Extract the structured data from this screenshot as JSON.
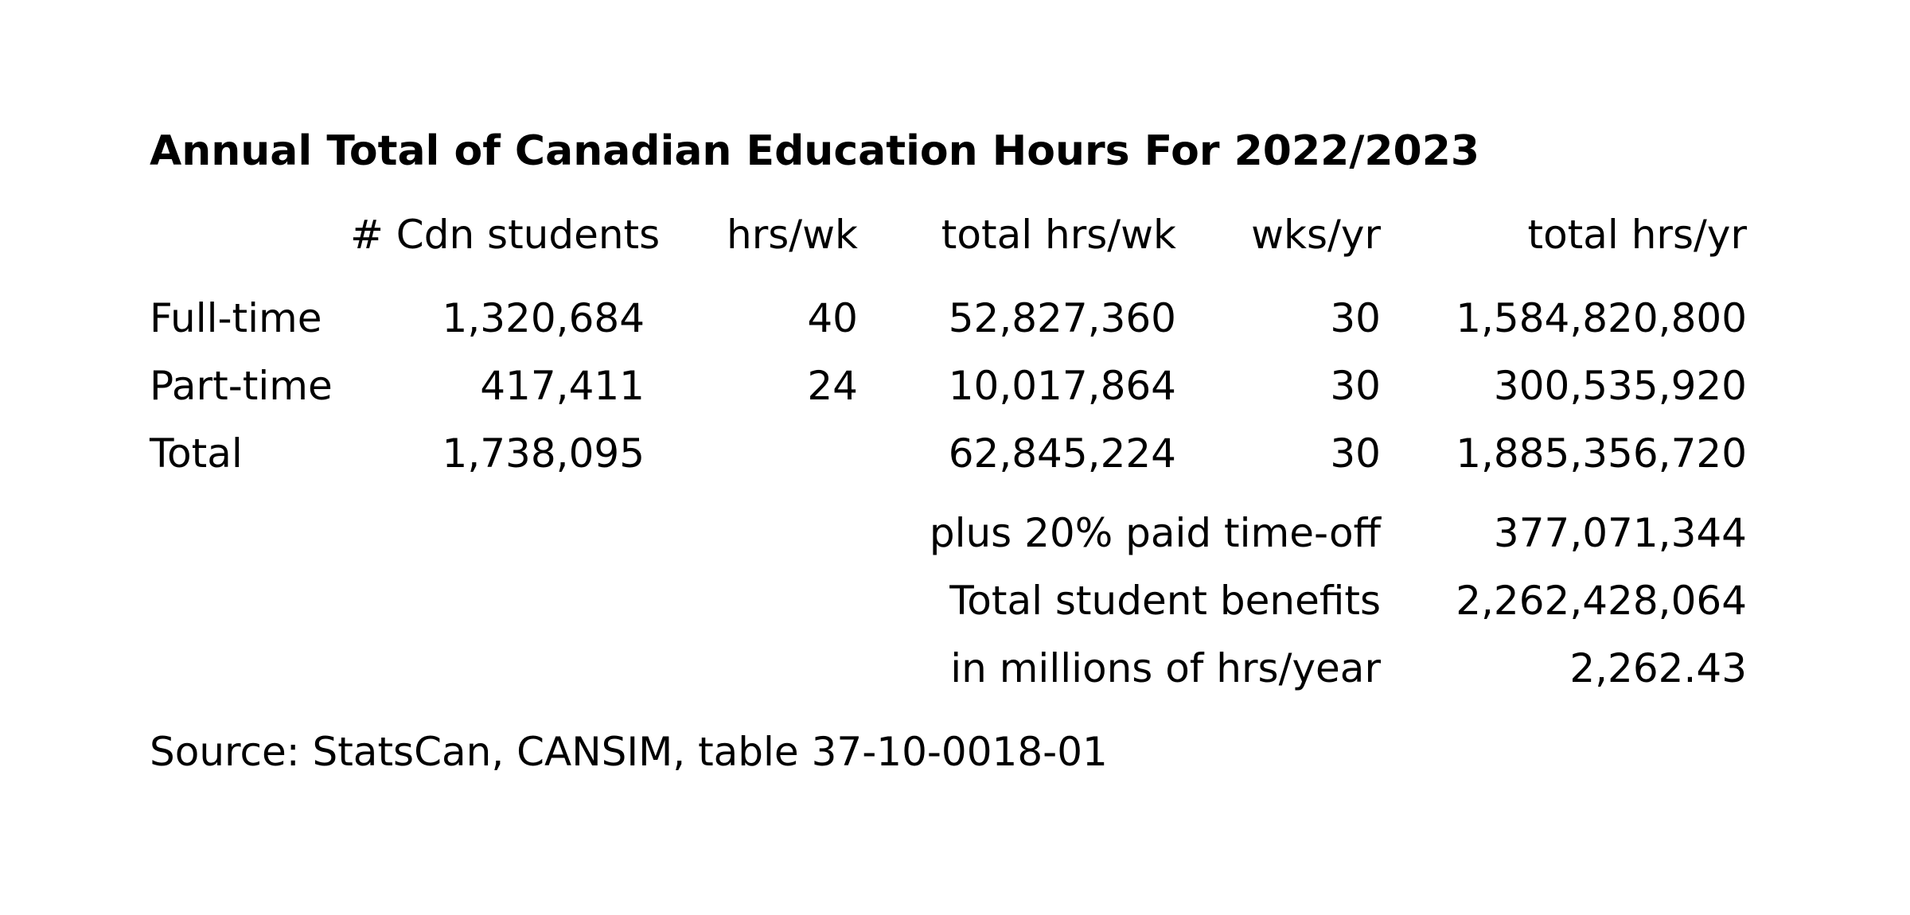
{
  "title": "Annual Total of Canadian Education Hours For 2022/2023",
  "table": {
    "headers": [
      "# Cdn students",
      "hrs/wk",
      "total hrs/wk",
      "wks/yr",
      "total hrs/yr"
    ],
    "rows": [
      {
        "label": "Full-time",
        "cells": [
          "1,320,684",
          "40",
          "52,827,360",
          "30",
          "1,584,820,800"
        ]
      },
      {
        "label": "Part-time",
        "cells": [
          "417,411",
          "24",
          "10,017,864",
          "30",
          "300,535,920"
        ]
      },
      {
        "label": "Total",
        "cells": [
          "1,738,095",
          "",
          "62,845,224",
          "30",
          "1,885,356,720"
        ]
      }
    ],
    "summary": [
      {
        "label": "plus 20% paid time-off",
        "value": "377,071,344"
      },
      {
        "label": "Total student benefits",
        "value": "2,262,428,064"
      },
      {
        "label": "in millions of hrs/year",
        "value": "2,262.43"
      }
    ]
  },
  "source": "Source: StatsCan, CANSIM, table 37-10-0018-01",
  "colors": {
    "background": "#ffffff",
    "text": "#000000"
  }
}
